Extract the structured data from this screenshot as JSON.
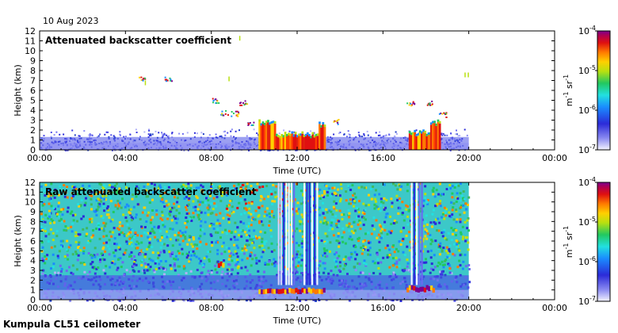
{
  "header": {
    "date": "10 Aug 2023"
  },
  "footer": {
    "station": "Kumpula CL51 ceilometer"
  },
  "colorscale": {
    "stops": [
      "#f4f4ff",
      "#c8c8f8",
      "#6a6af0",
      "#2b2bd8",
      "#1a8cff",
      "#22e0e0",
      "#22c860",
      "#b8e010",
      "#ffd000",
      "#ff7a00",
      "#e01010",
      "#b00050",
      "#7a0090"
    ],
    "bg_blue": "#4a52e6",
    "noise_cyan": "#3cc8c8"
  },
  "chart_data": [
    {
      "type": "heatmap",
      "title": "Attenuated backscatter coefficient",
      "xlabel": "Time (UTC)",
      "ylabel": "Height (km)",
      "xlim": [
        0,
        24
      ],
      "ylim": [
        0,
        12
      ],
      "x_tick_labels": [
        "00:00",
        "04:00",
        "08:00",
        "12:00",
        "16:00",
        "20:00",
        "00:00"
      ],
      "y_tick_labels": [
        "0",
        "1",
        "2",
        "3",
        "4",
        "5",
        "6",
        "7",
        "8",
        "9",
        "10",
        "11",
        "12"
      ],
      "data_end_hour": 20,
      "colorbar": {
        "label_base": "m",
        "label_exp1": "-1",
        "label_mid": " sr",
        "label_exp2": "-1",
        "tick_labels": [
          "10",
          "10",
          "10",
          "10"
        ],
        "tick_exps": [
          "-4",
          "-5",
          "-6",
          "-7"
        ]
      }
    },
    {
      "type": "heatmap",
      "title": "Raw attenuated backscatter coefficient",
      "xlabel": "Time (UTC)",
      "ylabel": "Height (km)",
      "xlim": [
        0,
        24
      ],
      "ylim": [
        0,
        12
      ],
      "x_tick_labels": [
        "00:00",
        "04:00",
        "08:00",
        "12:00",
        "16:00",
        "20:00",
        "00:00"
      ],
      "y_tick_labels": [
        "0",
        "1",
        "2",
        "3",
        "4",
        "5",
        "6",
        "7",
        "8",
        "9",
        "10",
        "11",
        "12"
      ],
      "data_end_hour": 20,
      "colorbar": {
        "label_base": "m",
        "label_exp1": "-1",
        "label_mid": " sr",
        "label_exp2": "-1",
        "tick_labels": [
          "10",
          "10",
          "10",
          "10"
        ],
        "tick_exps": [
          "-4",
          "-5",
          "-6",
          "-7"
        ]
      }
    }
  ]
}
